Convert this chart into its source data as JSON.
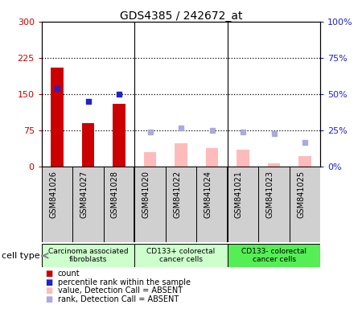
{
  "title": "GDS4385 / 242672_at",
  "samples": [
    "GSM841026",
    "GSM841027",
    "GSM841028",
    "GSM841020",
    "GSM841022",
    "GSM841024",
    "GSM841021",
    "GSM841023",
    "GSM841025"
  ],
  "count_values": [
    205,
    90,
    130,
    null,
    null,
    null,
    null,
    null,
    null
  ],
  "rank_values": [
    54,
    45,
    50,
    null,
    null,
    null,
    null,
    null,
    null
  ],
  "value_absent": [
    null,
    null,
    null,
    30,
    48,
    38,
    35,
    8,
    22
  ],
  "rank_absent": [
    null,
    null,
    null,
    24,
    27,
    25,
    24,
    23,
    17
  ],
  "count_color": "#cc0000",
  "rank_color": "#2222cc",
  "value_absent_color": "#ffbbbb",
  "rank_absent_color": "#aaaadd",
  "ylim_left": [
    0,
    300
  ],
  "ylim_right": [
    0,
    100
  ],
  "yticks_left": [
    0,
    75,
    150,
    225,
    300
  ],
  "yticks_right": [
    0,
    25,
    50,
    75,
    100
  ],
  "ytick_labels_left": [
    "0",
    "75",
    "150",
    "225",
    "300"
  ],
  "ytick_labels_right": [
    "0",
    "25",
    "50",
    "75",
    "100%"
  ],
  "cell_groups": [
    {
      "label": "Carcinoma associated\nfibroblasts",
      "start": 0,
      "end": 3,
      "color": "#ccffcc"
    },
    {
      "label": "CD133+ colorectal\ncancer cells",
      "start": 3,
      "end": 6,
      "color": "#ccffcc"
    },
    {
      "label": "CD133- colorectal\ncancer cells",
      "start": 6,
      "end": 9,
      "color": "#55ee55"
    }
  ],
  "cell_type_label": "cell type",
  "legend_items": [
    {
      "color": "#cc0000",
      "label": "count"
    },
    {
      "color": "#2222cc",
      "label": "percentile rank within the sample"
    },
    {
      "color": "#ffbbbb",
      "label": "value, Detection Call = ABSENT"
    },
    {
      "color": "#aaaadd",
      "label": "rank, Detection Call = ABSENT"
    }
  ],
  "plot_bg": "#ffffff",
  "plot_area_outline": "#000000",
  "dotted_line_color": "#000000",
  "bar_width": 0.4,
  "xtick_bg": "#d0d0d0"
}
